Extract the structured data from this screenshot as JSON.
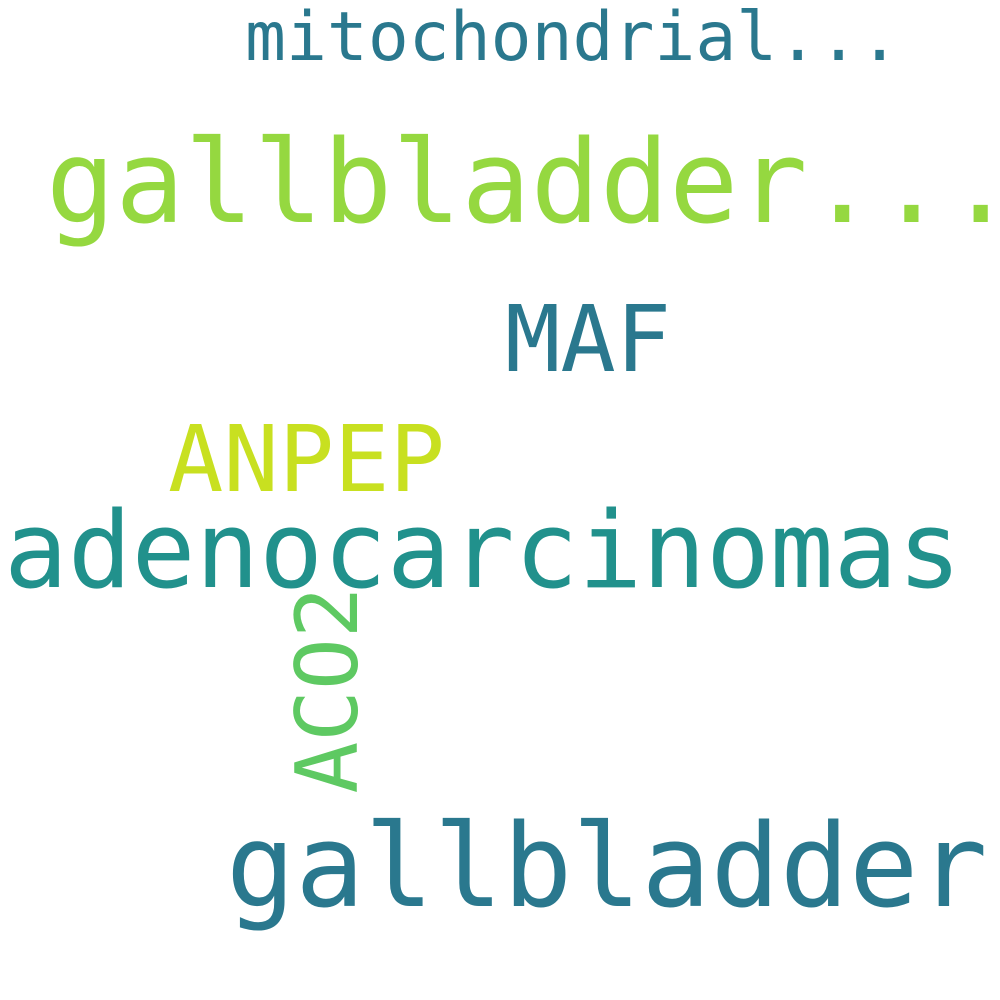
{
  "words": [
    {
      "text": "mitochondrial...",
      "color": "#2a788e",
      "orientation": "horizontal"
    },
    {
      "text": "gallbladder...",
      "color": "#95d840",
      "orientation": "horizontal"
    },
    {
      "text": "MAF",
      "color": "#2a788e",
      "orientation": "horizontal"
    },
    {
      "text": "ANPEP",
      "color": "#c8e020",
      "orientation": "horizontal"
    },
    {
      "text": "adenocarcinomas",
      "color": "#21918c",
      "orientation": "horizontal"
    },
    {
      "text": "ACO2",
      "color": "#5ec962",
      "orientation": "vertical"
    },
    {
      "text": "gallbladder",
      "color": "#2a788e",
      "orientation": "horizontal"
    }
  ]
}
